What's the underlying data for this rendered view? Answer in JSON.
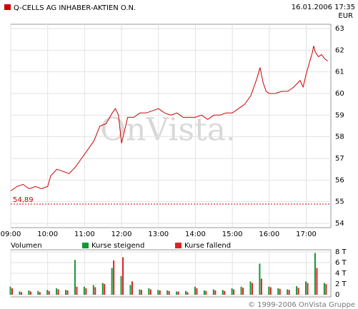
{
  "chart_data": [
    {
      "type": "line",
      "title": "Q-CELLS AG INHABER-AKTIEN O.N.",
      "subtitle": "16.01.2006 17:35",
      "unit": "EUR",
      "watermark": "OnVista.",
      "color": "#cc0000",
      "x": [
        9,
        9.083,
        9.167,
        9.333,
        9.5,
        9.667,
        9.833,
        10,
        10.083,
        10.25,
        10.417,
        10.583,
        10.75,
        10.917,
        11.083,
        11.25,
        11.417,
        11.583,
        11.75,
        11.833,
        11.917,
        12,
        12.083,
        12.167,
        12.333,
        12.5,
        12.667,
        12.833,
        13,
        13.167,
        13.333,
        13.5,
        13.667,
        13.833,
        14,
        14.167,
        14.333,
        14.5,
        14.667,
        14.833,
        15,
        15.167,
        15.333,
        15.5,
        15.667,
        15.75,
        15.833,
        15.917,
        16,
        16.167,
        16.333,
        16.5,
        16.667,
        16.833,
        16.917,
        17,
        17.083,
        17.167,
        17.2,
        17.25,
        17.333,
        17.417,
        17.5,
        17.583
      ],
      "values": [
        55.5,
        55.6,
        55.7,
        55.8,
        55.6,
        55.7,
        55.6,
        55.7,
        56.2,
        56.5,
        56.4,
        56.3,
        56.6,
        57.0,
        57.4,
        57.8,
        58.5,
        58.6,
        59.1,
        59.3,
        59.0,
        57.7,
        58.3,
        58.9,
        58.9,
        59.1,
        59.1,
        59.2,
        59.3,
        59.1,
        59.0,
        59.1,
        58.9,
        58.9,
        58.9,
        59.0,
        58.8,
        59.0,
        59.0,
        59.1,
        59.1,
        59.3,
        59.5,
        59.9,
        60.7,
        61.2,
        60.5,
        60.1,
        60.0,
        60.0,
        60.1,
        60.1,
        60.3,
        60.6,
        60.3,
        60.9,
        61.4,
        61.9,
        62.2,
        61.9,
        61.7,
        61.8,
        61.6,
        61.5
      ],
      "reference": {
        "value": 54.89,
        "label": "54,89",
        "color": "#cc0000"
      },
      "xlim": [
        9,
        17.667
      ],
      "xticks": [
        {
          "value": 9,
          "label": "09:00"
        },
        {
          "value": 10,
          "label": "10:00"
        },
        {
          "value": 11,
          "label": "11:00"
        },
        {
          "value": 12,
          "label": "12:00"
        },
        {
          "value": 13,
          "label": "13:00"
        },
        {
          "value": 14,
          "label": "14:00"
        },
        {
          "value": 15,
          "label": "15:00"
        },
        {
          "value": 16,
          "label": "16:00"
        },
        {
          "value": 17,
          "label": "17:00"
        }
      ],
      "ylim": [
        54,
        63
      ],
      "yticks": [
        54,
        55,
        56,
        57,
        58,
        59,
        60,
        61,
        62,
        63
      ],
      "grid": true
    },
    {
      "type": "bar",
      "title": "Volumen",
      "x": [
        9,
        9.25,
        9.5,
        9.75,
        10,
        10.25,
        10.5,
        10.75,
        11,
        11.25,
        11.5,
        11.75,
        12,
        12.25,
        12.5,
        12.75,
        13,
        13.25,
        13.5,
        13.75,
        14,
        14.25,
        14.5,
        14.75,
        15,
        15.25,
        15.5,
        15.75,
        16,
        16.25,
        16.5,
        16.75,
        17,
        17.25,
        17.5
      ],
      "series": [
        {
          "name": "Kurse steigend",
          "color": "#119933",
          "values": [
            1500,
            600,
            800,
            700,
            900,
            1200,
            900,
            6500,
            1500,
            1800,
            2200,
            5000,
            3500,
            1800,
            1000,
            1200,
            900,
            800,
            600,
            700,
            1500,
            800,
            1000,
            900,
            1200,
            1500,
            2500,
            5800,
            1500,
            1200,
            1000,
            1600,
            2500,
            7800,
            2200
          ]
        },
        {
          "name": "Kurse fallend",
          "color": "#dd2222",
          "values": [
            1200,
            500,
            600,
            500,
            700,
            1000,
            800,
            1500,
            1200,
            1400,
            2000,
            6400,
            7000,
            2500,
            900,
            1000,
            800,
            700,
            600,
            500,
            1200,
            700,
            800,
            700,
            1000,
            1300,
            2200,
            3000,
            1400,
            1100,
            900,
            1300,
            2200,
            5000,
            2000
          ]
        }
      ],
      "xlim": [
        9,
        17.667
      ],
      "ylim": [
        0,
        8000
      ],
      "yticks": [
        0,
        {
          "value": 2000,
          "label": "2 T"
        },
        {
          "value": 4000,
          "label": "4 T"
        },
        {
          "value": 6000,
          "label": "6 T"
        },
        {
          "value": 8000,
          "label": "8 T"
        }
      ],
      "grid": true
    }
  ],
  "footer": "© 1999-2006 OnVista Gruppe"
}
